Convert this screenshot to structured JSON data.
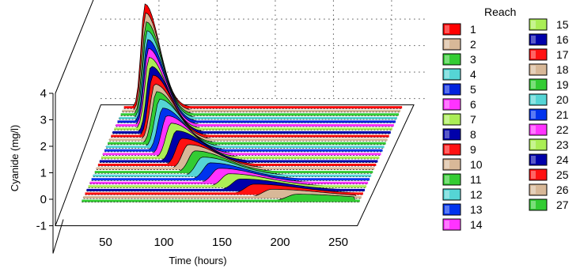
{
  "chart_data": {
    "type": "area",
    "style": "3d-stacked-area",
    "xlabel": "Time (hours)",
    "ylabel": "Cyanide (mg/l)",
    "xlim": [
      0,
      280
    ],
    "ylim": [
      -1,
      4
    ],
    "xticks": [
      "50",
      "100",
      "150",
      "200",
      "250"
    ],
    "yticks": [
      "-1",
      "0",
      "1",
      "2",
      "3",
      "4"
    ],
    "grid": true,
    "legend": {
      "title": "Reach",
      "position": "right"
    },
    "series": [
      {
        "name": "1",
        "color": "#ff0000",
        "peak_time": 38,
        "peak_value": 3.9
      },
      {
        "name": "2",
        "color": "#d8b898",
        "peak_time": 40,
        "peak_value": 3.7
      },
      {
        "name": "3",
        "color": "#33cc33",
        "peak_time": 42,
        "peak_value": 3.5
      },
      {
        "name": "4",
        "color": "#55d5d5",
        "peak_time": 44,
        "peak_value": 3.3
      },
      {
        "name": "5",
        "color": "#0022dd",
        "peak_time": 46,
        "peak_value": 3.1
      },
      {
        "name": "6",
        "color": "#ff33ff",
        "peak_time": 48,
        "peak_value": 2.9
      },
      {
        "name": "7",
        "color": "#aaee55",
        "peak_time": 50,
        "peak_value": 2.7
      },
      {
        "name": "8",
        "color": "#0000aa",
        "peak_time": 53,
        "peak_value": 2.5
      },
      {
        "name": "9",
        "color": "#ff1111",
        "peak_time": 56,
        "peak_value": 2.3
      },
      {
        "name": "10",
        "color": "#d8b898",
        "peak_time": 59,
        "peak_value": 2.1
      },
      {
        "name": "11",
        "color": "#33cc33",
        "peak_time": 62,
        "peak_value": 1.95
      },
      {
        "name": "12",
        "color": "#55d5d5",
        "peak_time": 66,
        "peak_value": 1.8
      },
      {
        "name": "13",
        "color": "#0033ee",
        "peak_time": 70,
        "peak_value": 1.6
      },
      {
        "name": "14",
        "color": "#ff33ff",
        "peak_time": 75,
        "peak_value": 1.45
      },
      {
        "name": "15",
        "color": "#aaee55",
        "peak_time": 80,
        "peak_value": 1.3
      },
      {
        "name": "16",
        "color": "#0000aa",
        "peak_time": 86,
        "peak_value": 1.15
      },
      {
        "name": "17",
        "color": "#ff1111",
        "peak_time": 92,
        "peak_value": 1.0
      },
      {
        "name": "18",
        "color": "#d8b898",
        "peak_time": 99,
        "peak_value": 0.9
      },
      {
        "name": "19",
        "color": "#33cc33",
        "peak_time": 106,
        "peak_value": 0.8
      },
      {
        "name": "20",
        "color": "#55d5d5",
        "peak_time": 114,
        "peak_value": 0.7
      },
      {
        "name": "21",
        "color": "#0033ee",
        "peak_time": 122,
        "peak_value": 0.62
      },
      {
        "name": "22",
        "color": "#ff33ff",
        "peak_time": 131,
        "peak_value": 0.55
      },
      {
        "name": "23",
        "color": "#aaee55",
        "peak_time": 141,
        "peak_value": 0.48
      },
      {
        "name": "24",
        "color": "#0000aa",
        "peak_time": 152,
        "peak_value": 0.42
      },
      {
        "name": "25",
        "color": "#ff1111",
        "peak_time": 165,
        "peak_value": 0.36
      },
      {
        "name": "26",
        "color": "#d8b898",
        "peak_time": 182,
        "peak_value": 0.3
      },
      {
        "name": "27",
        "color": "#33cc33",
        "peak_time": 205,
        "peak_value": 0.25
      }
    ]
  }
}
